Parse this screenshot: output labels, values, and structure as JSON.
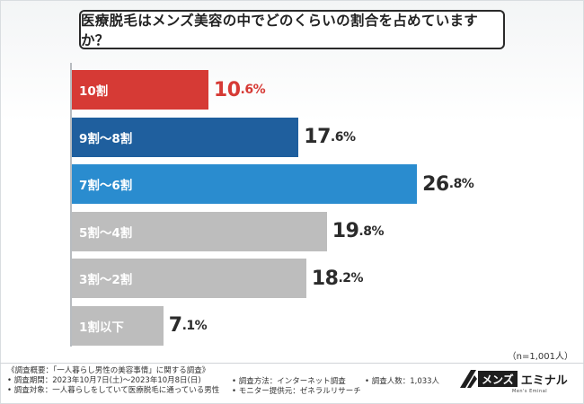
{
  "title": "医療脱毛はメンズ美容の中でどのくらいの割合を占めていますか？",
  "sample_size": "（n=1,001人）",
  "chart_data": {
    "type": "bar",
    "orientation": "horizontal",
    "title": "医療脱毛はメンズ美容の中でどのくらいの割合を占めていますか？",
    "categories": [
      "10割",
      "9割〜8割",
      "7割〜6割",
      "5割〜4割",
      "3割〜2割",
      "1割以下"
    ],
    "values": [
      10.6,
      17.6,
      26.8,
      19.8,
      18.2,
      7.1
    ],
    "value_labels": [
      {
        "int": "10",
        "dec": ".6%"
      },
      {
        "int": "17",
        "dec": ".6%"
      },
      {
        "int": "26",
        "dec": ".8%"
      },
      {
        "int": "19",
        "dec": ".8%"
      },
      {
        "int": "18",
        "dec": ".2%"
      },
      {
        "int": "7",
        "dec": ".1%"
      }
    ],
    "colors": [
      "#d63a35",
      "#1f5f9e",
      "#2a8ccf",
      "#bdbdbd",
      "#bdbdbd",
      "#bdbdbd"
    ],
    "xlim": [
      0,
      30
    ],
    "unit": "%"
  },
  "footer": {
    "overview": "《調査概要：「一人暮らし男性の美容事情」に関する調査》",
    "period": "• 調査期間：2023年10月7日(土)〜2023年10月8日(日)",
    "target": "• 調査対象：一人暮らしをしていて医療脱毛に通っている男性",
    "method": "• 調査方法：インターネット調査",
    "provider": "• モニター提供元：ゼネラルリサーチ",
    "count": "• 調査人数：1,033人"
  },
  "logo": {
    "part1": "メンズ",
    "part2": "エミナル",
    "sub": "Men's Eminal"
  }
}
